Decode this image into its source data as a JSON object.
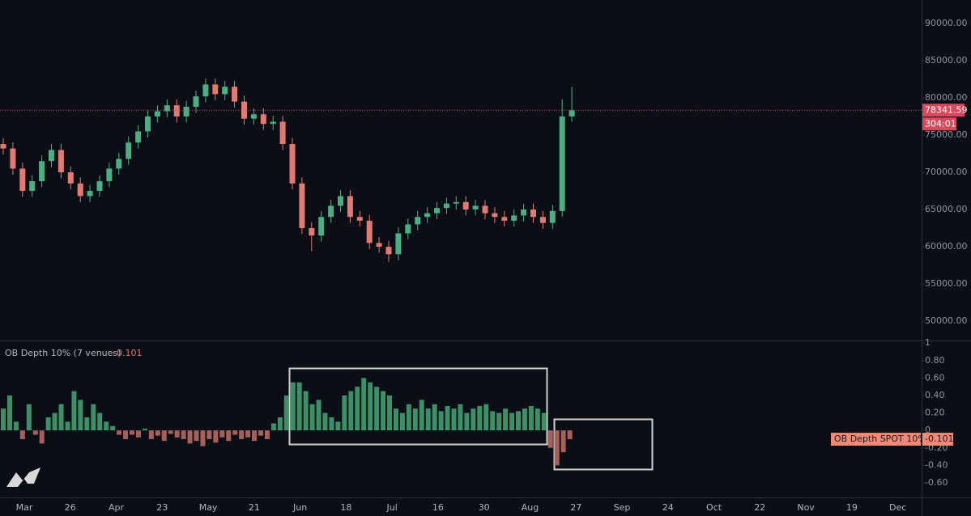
{
  "chart_data": [
    {
      "type": "candlestick",
      "up_color": "#4caf84",
      "down_color": "#e07a72",
      "open": [
        73800,
        73200,
        70500,
        67500,
        68800,
        71500,
        73000,
        70000,
        68500,
        66800,
        67500,
        68800,
        70500,
        71800,
        74000,
        75500,
        77500,
        78200,
        79000,
        77500,
        78800,
        80200,
        81800,
        80500,
        81500,
        79500,
        77200,
        77800,
        76500,
        76800,
        73800,
        68500,
        62500,
        61500,
        64000,
        65500,
        66800,
        64000,
        63500,
        60500,
        60000,
        59000,
        61800,
        63000,
        64000,
        64500,
        65200,
        65800,
        66000,
        65000,
        65500,
        64500,
        64000,
        63500,
        64200,
        65000,
        64000,
        63200,
        64800,
        77500
      ],
      "high": [
        74600,
        74000,
        71300,
        69600,
        72300,
        73800,
        73800,
        70800,
        69300,
        68300,
        69600,
        71300,
        72600,
        74800,
        76300,
        78300,
        79000,
        79800,
        79800,
        79600,
        81000,
        82600,
        82600,
        82300,
        82300,
        80300,
        78600,
        78600,
        77600,
        77600,
        74600,
        69300,
        63300,
        64800,
        66300,
        67600,
        67600,
        64800,
        64300,
        61300,
        60800,
        62600,
        63800,
        64800,
        65300,
        66000,
        66600,
        66800,
        66800,
        66300,
        66300,
        65300,
        64800,
        65000,
        65800,
        65800,
        64800,
        65600,
        79800,
        81500
      ],
      "low": [
        72400,
        69700,
        66700,
        66700,
        68000,
        70700,
        69200,
        67700,
        66000,
        66000,
        66700,
        68000,
        69700,
        71000,
        73200,
        74700,
        76700,
        77400,
        76700,
        76700,
        78000,
        79400,
        79700,
        79700,
        78700,
        76400,
        76400,
        75700,
        75700,
        73000,
        67700,
        61700,
        59400,
        60700,
        63200,
        64700,
        63200,
        62700,
        59700,
        59200,
        58000,
        58200,
        61000,
        62200,
        63200,
        63700,
        64400,
        65000,
        64200,
        64200,
        63700,
        63200,
        62700,
        62700,
        63400,
        63200,
        62400,
        62400,
        64000,
        76800
      ],
      "close": [
        73200,
        70500,
        67500,
        68800,
        71500,
        73000,
        70000,
        68500,
        66800,
        67500,
        68800,
        70500,
        71800,
        74000,
        75500,
        77500,
        78200,
        79000,
        77500,
        78800,
        80200,
        81800,
        80500,
        81500,
        79500,
        77200,
        77800,
        76500,
        76800,
        73800,
        68500,
        62500,
        61500,
        64000,
        65500,
        66800,
        64000,
        63500,
        60500,
        60000,
        59000,
        61800,
        63000,
        64000,
        64500,
        65200,
        65800,
        66000,
        65000,
        65500,
        64500,
        64000,
        63500,
        64200,
        65000,
        64000,
        63200,
        64800,
        77500,
        78341.59
      ],
      "countdown": "304:01",
      "ylim": [
        47400,
        93150
      ],
      "yticks": [
        {
          "value": 90000,
          "label": "90000.00"
        },
        {
          "value": 85000,
          "label": "85000.00"
        },
        {
          "value": 80000,
          "label": "80000.00"
        },
        {
          "value": 75000,
          "label": "75000.00"
        },
        {
          "value": 70000,
          "label": "70000.00"
        },
        {
          "value": 65000,
          "label": "65000.00"
        },
        {
          "value": 60000,
          "label": "60000.00"
        },
        {
          "value": 55000,
          "label": "55000.00"
        },
        {
          "value": 50000,
          "label": "50000.00"
        }
      ]
    },
    {
      "type": "bar",
      "title": "OB Depth 10% (7 venues)",
      "series_label": "OB Depth SPOT 10%",
      "pos_color": "#3d8f68",
      "neg_color": "#a4605a",
      "values": [
        0.25,
        0.4,
        0.1,
        -0.1,
        0.3,
        -0.05,
        -0.15,
        0.15,
        0.2,
        0.3,
        0.1,
        0.45,
        0.35,
        0.15,
        0.3,
        0.2,
        0.1,
        0.05,
        -0.05,
        -0.1,
        -0.05,
        -0.08,
        0.02,
        -0.1,
        -0.06,
        -0.12,
        -0.04,
        -0.08,
        -0.1,
        -0.15,
        -0.12,
        -0.18,
        -0.1,
        -0.14,
        -0.08,
        -0.12,
        -0.05,
        -0.1,
        -0.08,
        -0.12,
        -0.06,
        -0.1,
        0.08,
        0.15,
        0.4,
        0.55,
        0.55,
        0.45,
        0.3,
        0.35,
        0.2,
        0.15,
        0.1,
        0.4,
        0.45,
        0.5,
        0.6,
        0.55,
        0.5,
        0.45,
        0.4,
        0.25,
        0.2,
        0.3,
        0.25,
        0.35,
        0.25,
        0.3,
        0.22,
        0.28,
        0.25,
        0.3,
        0.2,
        0.25,
        0.28,
        0.3,
        0.22,
        0.2,
        0.25,
        0.2,
        0.22,
        0.25,
        0.28,
        0.25,
        0.2,
        -0.2,
        -0.4,
        -0.25,
        -0.101
      ],
      "ylim": [
        -0.767,
        1.02
      ],
      "yticks": [
        1,
        {
          "value": 0.8,
          "label": "0.80"
        },
        {
          "value": 0.6,
          "label": "0.60"
        },
        {
          "value": 0.4,
          "label": "0.40"
        },
        {
          "value": 0.2,
          "label": "0.20"
        },
        0,
        {
          "value": -0.2,
          "label": "-0.20"
        },
        {
          "value": -0.4,
          "label": "-0.40"
        },
        {
          "value": -0.6,
          "label": "-0.60"
        }
      ],
      "xtick_labels": [
        "Mar",
        "26",
        "Apr",
        "23",
        "May",
        "21",
        "Jun",
        "18",
        "Jul",
        "16",
        "30",
        "Aug",
        "27",
        "Sep",
        "24",
        "Oct",
        "22",
        "Nov",
        "19",
        "Dec"
      ]
    }
  ]
}
